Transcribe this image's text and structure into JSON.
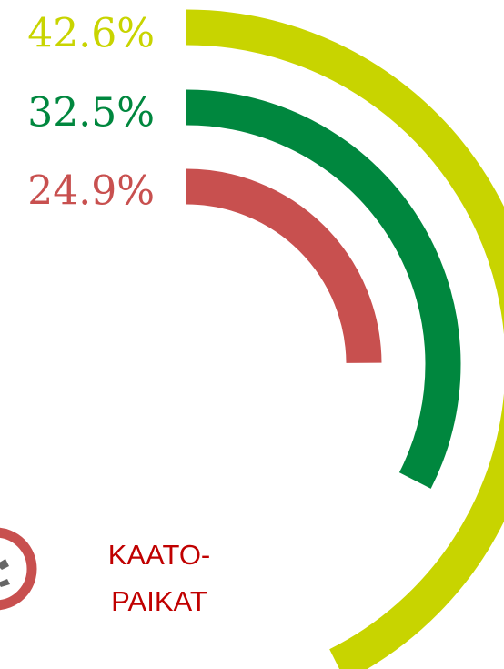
{
  "chart_data": {
    "type": "radial-bar",
    "series": [
      {
        "name": null,
        "color": "#c8d400",
        "values": [
          42.6
        ],
        "value_labels": [
          "42.6%"
        ]
      },
      {
        "name": null,
        "color": "#00873e",
        "values": [
          32.5
        ],
        "value_labels": [
          "32.5%"
        ]
      },
      {
        "name": null,
        "color": "#c8504f",
        "values": [
          24.9
        ],
        "value_labels": [
          "24.9%"
        ]
      }
    ],
    "ylim": [
      0,
      100
    ],
    "annotation": [
      "KAATO-",
      "PAIKAT"
    ]
  }
}
